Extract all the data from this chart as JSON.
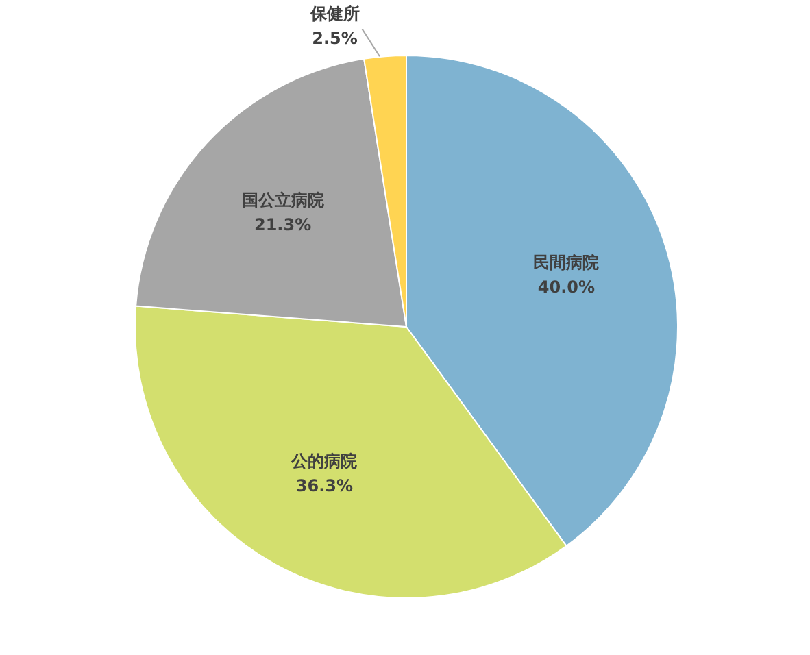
{
  "chart_data": {
    "type": "pie",
    "categories": [
      "民間病院",
      "公的病院",
      "国公立病院",
      "保健所"
    ],
    "values": [
      40.0,
      36.3,
      21.3,
      2.5
    ],
    "value_labels": [
      "40.0%",
      "36.3%",
      "21.3%",
      "2.5%"
    ],
    "colors": [
      "#7fb3d1",
      "#d3df6e",
      "#a6a6a6",
      "#ffd452"
    ]
  }
}
